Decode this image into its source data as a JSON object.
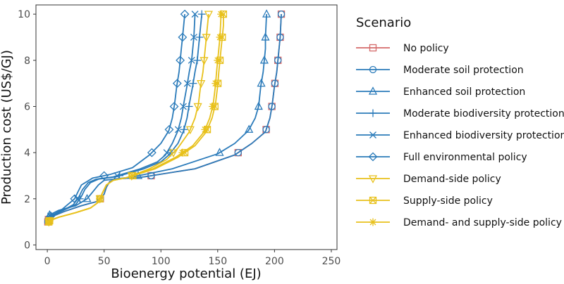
{
  "chart_data": {
    "type": "line",
    "title": "",
    "xlabel": "Bioenergy potential (EJ)",
    "ylabel": "Production cost (US$/GJ)",
    "xlim": [
      -10,
      255
    ],
    "ylim": [
      -0.2,
      10.4
    ],
    "xticks": [
      0,
      50,
      100,
      150,
      200,
      250
    ],
    "yticks": [
      0,
      2,
      4,
      6,
      8,
      10
    ],
    "grid": false,
    "legend_title": "Scenario",
    "legend_position": "right",
    "series": [
      {
        "name": "No policy",
        "color": "#d46a6a",
        "marker": "square",
        "points": [
          [
            0,
            0.9
          ],
          [
            1,
            1.1
          ],
          [
            5,
            1.25
          ],
          [
            15,
            1.45
          ],
          [
            30,
            1.7
          ],
          [
            45,
            1.9
          ],
          [
            50,
            2.2
          ],
          [
            52,
            2.5
          ],
          [
            55,
            2.75
          ],
          [
            60,
            2.85
          ],
          [
            85,
            2.95
          ],
          [
            130,
            3.3
          ],
          [
            165,
            3.9
          ],
          [
            180,
            4.4
          ],
          [
            192,
            4.9
          ],
          [
            196,
            5.5
          ],
          [
            198,
            6.1
          ],
          [
            200,
            6.9
          ],
          [
            202,
            7.5
          ],
          [
            203,
            8.0
          ],
          [
            204,
            8.5
          ],
          [
            205,
            9.0
          ],
          [
            206,
            10.0
          ]
        ]
      },
      {
        "name": "Moderate soil protection",
        "color": "#2b7bba",
        "marker": "circle",
        "points": [
          [
            0,
            0.9
          ],
          [
            1,
            1.1
          ],
          [
            5,
            1.25
          ],
          [
            15,
            1.45
          ],
          [
            30,
            1.7
          ],
          [
            45,
            1.9
          ],
          [
            50,
            2.2
          ],
          [
            52,
            2.5
          ],
          [
            55,
            2.75
          ],
          [
            60,
            2.85
          ],
          [
            85,
            2.95
          ],
          [
            130,
            3.3
          ],
          [
            165,
            3.9
          ],
          [
            180,
            4.4
          ],
          [
            192,
            4.9
          ],
          [
            196,
            5.5
          ],
          [
            198,
            6.1
          ],
          [
            200,
            6.9
          ],
          [
            202,
            7.5
          ],
          [
            203,
            8.0
          ],
          [
            204,
            8.5
          ],
          [
            205,
            9.0
          ],
          [
            206,
            10.0
          ]
        ]
      },
      {
        "name": "Enhanced soil protection",
        "color": "#2b7bba",
        "marker": "triangle",
        "points": [
          [
            0,
            1.1
          ],
          [
            2,
            1.3
          ],
          [
            10,
            1.5
          ],
          [
            25,
            1.7
          ],
          [
            35,
            2.0
          ],
          [
            40,
            2.3
          ],
          [
            45,
            2.6
          ],
          [
            50,
            2.8
          ],
          [
            75,
            2.95
          ],
          [
            110,
            3.3
          ],
          [
            150,
            3.95
          ],
          [
            165,
            4.4
          ],
          [
            177,
            4.95
          ],
          [
            183,
            5.5
          ],
          [
            186,
            6.0
          ],
          [
            188,
            6.9
          ],
          [
            190,
            7.5
          ],
          [
            191,
            8.0
          ],
          [
            192,
            8.5
          ],
          [
            192,
            9.0
          ],
          [
            193,
            10.0
          ]
        ]
      },
      {
        "name": "Moderate biodiversity protection",
        "color": "#2b7bba",
        "marker": "plus",
        "points": [
          [
            0,
            1.1
          ],
          [
            3,
            1.25
          ],
          [
            12,
            1.45
          ],
          [
            25,
            1.75
          ],
          [
            30,
            2.1
          ],
          [
            33,
            2.4
          ],
          [
            38,
            2.7
          ],
          [
            45,
            2.85
          ],
          [
            60,
            2.95
          ],
          [
            85,
            3.3
          ],
          [
            100,
            3.6
          ],
          [
            107,
            3.9
          ],
          [
            115,
            4.4
          ],
          [
            120,
            4.95
          ],
          [
            123,
            5.5
          ],
          [
            125,
            6.1
          ],
          [
            128,
            6.9
          ],
          [
            130,
            7.5
          ],
          [
            132,
            8.0
          ],
          [
            133,
            8.5
          ],
          [
            134,
            9.0
          ],
          [
            135,
            9.5
          ],
          [
            136,
            10.0
          ]
        ]
      },
      {
        "name": "Enhanced biodiversity protection",
        "color": "#2b7bba",
        "marker": "x",
        "points": [
          [
            0,
            1.1
          ],
          [
            3,
            1.25
          ],
          [
            12,
            1.45
          ],
          [
            23,
            1.75
          ],
          [
            28,
            2.1
          ],
          [
            31,
            2.4
          ],
          [
            36,
            2.7
          ],
          [
            43,
            2.85
          ],
          [
            58,
            2.95
          ],
          [
            82,
            3.3
          ],
          [
            97,
            3.6
          ],
          [
            104,
            3.9
          ],
          [
            110,
            4.4
          ],
          [
            115,
            4.95
          ],
          [
            118,
            5.5
          ],
          [
            120,
            6.1
          ],
          [
            123,
            6.9
          ],
          [
            125,
            7.5
          ],
          [
            127,
            8.0
          ],
          [
            128,
            8.5
          ],
          [
            129,
            9.0
          ],
          [
            129.5,
            9.5
          ],
          [
            130,
            10.0
          ]
        ]
      },
      {
        "name": "Full environmental policy",
        "color": "#2b7bba",
        "marker": "diamond",
        "points": [
          [
            0,
            1.1
          ],
          [
            3,
            1.25
          ],
          [
            12,
            1.5
          ],
          [
            24,
            2.0
          ],
          [
            27,
            2.3
          ],
          [
            30,
            2.6
          ],
          [
            40,
            2.9
          ],
          [
            55,
            3.05
          ],
          [
            75,
            3.35
          ],
          [
            90,
            3.9
          ],
          [
            100,
            4.4
          ],
          [
            107,
            4.95
          ],
          [
            110,
            5.5
          ],
          [
            112,
            6.1
          ],
          [
            114,
            6.9
          ],
          [
            116,
            7.5
          ],
          [
            117,
            8.0
          ],
          [
            118,
            8.5
          ],
          [
            119,
            9.0
          ],
          [
            120,
            9.5
          ],
          [
            121,
            10.0
          ]
        ]
      },
      {
        "name": "Demand-side policy",
        "color": "#e8c11c",
        "marker": "triangle-down",
        "points": [
          [
            0,
            0.9
          ],
          [
            2,
            1.05
          ],
          [
            10,
            1.2
          ],
          [
            25,
            1.4
          ],
          [
            38,
            1.6
          ],
          [
            45,
            1.85
          ],
          [
            48,
            2.2
          ],
          [
            52,
            2.6
          ],
          [
            58,
            2.8
          ],
          [
            70,
            2.92
          ],
          [
            90,
            3.3
          ],
          [
            105,
            3.7
          ],
          [
            115,
            4.2
          ],
          [
            125,
            4.9
          ],
          [
            130,
            5.5
          ],
          [
            133,
            6.1
          ],
          [
            135,
            6.9
          ],
          [
            137,
            7.5
          ],
          [
            138,
            8.0
          ],
          [
            139,
            8.5
          ],
          [
            140,
            9.0
          ],
          [
            141,
            9.5
          ],
          [
            142,
            10.0
          ]
        ]
      },
      {
        "name": "Supply-side policy",
        "color": "#e8c11c",
        "marker": "square-cross",
        "points": [
          [
            0,
            0.9
          ],
          [
            2,
            1.05
          ],
          [
            10,
            1.2
          ],
          [
            25,
            1.4
          ],
          [
            38,
            1.6
          ],
          [
            45,
            1.85
          ],
          [
            48,
            2.2
          ],
          [
            52,
            2.6
          ],
          [
            58,
            2.8
          ],
          [
            70,
            2.92
          ],
          [
            95,
            3.3
          ],
          [
            115,
            3.8
          ],
          [
            130,
            4.3
          ],
          [
            140,
            4.9
          ],
          [
            145,
            5.5
          ],
          [
            148,
            6.1
          ],
          [
            150,
            6.9
          ],
          [
            151,
            7.5
          ],
          [
            152,
            8.0
          ],
          [
            153,
            8.5
          ],
          [
            154,
            9.0
          ],
          [
            155,
            9.5
          ],
          [
            155,
            10.0
          ]
        ]
      },
      {
        "name": "Demand- and supply-side policy",
        "color": "#e8c11c",
        "marker": "star",
        "points": [
          [
            0,
            0.9
          ],
          [
            2,
            1.05
          ],
          [
            10,
            1.2
          ],
          [
            25,
            1.4
          ],
          [
            38,
            1.6
          ],
          [
            45,
            1.85
          ],
          [
            48,
            2.2
          ],
          [
            52,
            2.6
          ],
          [
            58,
            2.8
          ],
          [
            70,
            2.92
          ],
          [
            93,
            3.3
          ],
          [
            113,
            3.8
          ],
          [
            128,
            4.3
          ],
          [
            138,
            4.9
          ],
          [
            143,
            5.5
          ],
          [
            146,
            6.1
          ],
          [
            148,
            6.9
          ],
          [
            149,
            7.5
          ],
          [
            150,
            8.0
          ],
          [
            151,
            8.5
          ],
          [
            152,
            9.0
          ],
          [
            152.5,
            9.5
          ],
          [
            153,
            10.0
          ]
        ]
      }
    ]
  }
}
